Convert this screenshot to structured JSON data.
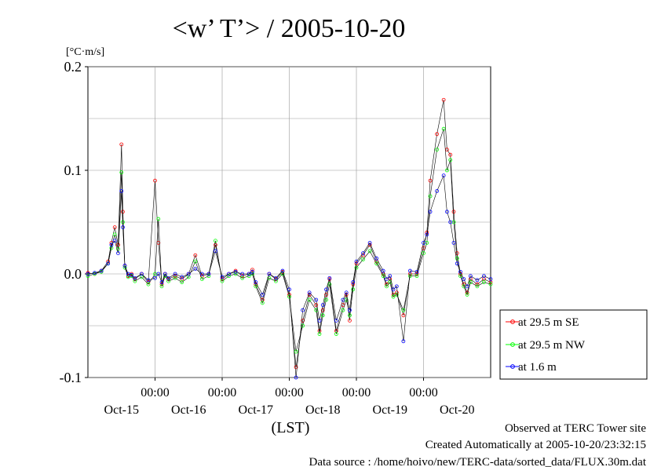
{
  "chart_data": {
    "type": "line",
    "title": "<w’ T’> / 2005-10-20",
    "ylabel": "[°C·m/s]",
    "xlabel": "(LST)",
    "ylim": [
      -0.1,
      0.2
    ],
    "xlim": [
      0,
      6.0
    ],
    "y_ticks": [
      "0.2",
      "0.1",
      "0.0",
      "-0.1"
    ],
    "x_time_ticks": [
      "00:00",
      "00:00",
      "00:00",
      "00:00",
      "00:00"
    ],
    "x_day_ticks": [
      "Oct-15",
      "Oct-16",
      "Oct-17",
      "Oct-18",
      "Oct-19",
      "Oct-20"
    ],
    "grid": true,
    "legend_placement": "right",
    "series": [
      {
        "name": "at 29.5 m SE",
        "color": "#ff0000",
        "x": [
          0.0,
          0.1,
          0.2,
          0.3,
          0.35,
          0.4,
          0.45,
          0.5,
          0.52,
          0.55,
          0.6,
          0.65,
          0.7,
          0.8,
          0.9,
          1.0,
          1.05,
          1.1,
          1.15,
          1.2,
          1.3,
          1.4,
          1.5,
          1.6,
          1.7,
          1.8,
          1.9,
          2.0,
          2.1,
          2.2,
          2.3,
          2.4,
          2.45,
          2.5,
          2.6,
          2.7,
          2.8,
          2.9,
          3.0,
          3.1,
          3.2,
          3.3,
          3.4,
          3.45,
          3.5,
          3.55,
          3.6,
          3.7,
          3.8,
          3.85,
          3.9,
          3.95,
          4.0,
          4.1,
          4.2,
          4.3,
          4.4,
          4.45,
          4.5,
          4.55,
          4.6,
          4.7,
          4.8,
          4.9,
          5.0,
          5.05,
          5.1,
          5.2,
          5.3,
          5.35,
          5.4,
          5.45,
          5.5,
          5.55,
          5.6,
          5.65,
          5.7,
          5.8,
          5.9,
          6.0
        ],
        "y": [
          0.001,
          0.0,
          0.003,
          0.012,
          0.03,
          0.045,
          0.028,
          0.125,
          0.06,
          0.008,
          -0.002,
          0.0,
          -0.005,
          0.0,
          -0.008,
          0.09,
          0.03,
          -0.01,
          0.0,
          -0.005,
          -0.002,
          -0.005,
          0.0,
          0.018,
          -0.002,
          0.0,
          0.028,
          -0.005,
          0.0,
          0.003,
          -0.002,
          0.0,
          0.004,
          -0.01,
          -0.025,
          0.0,
          -0.005,
          0.002,
          -0.02,
          -0.09,
          -0.045,
          -0.02,
          -0.03,
          -0.055,
          -0.035,
          -0.02,
          -0.005,
          -0.055,
          -0.03,
          -0.02,
          -0.045,
          -0.01,
          0.01,
          0.018,
          0.028,
          0.012,
          0.0,
          -0.01,
          -0.005,
          -0.02,
          -0.018,
          -0.04,
          0.0,
          0.0,
          0.025,
          0.04,
          0.09,
          0.135,
          0.168,
          0.12,
          0.115,
          0.06,
          0.02,
          0.0,
          -0.01,
          -0.018,
          -0.005,
          -0.01,
          -0.005,
          -0.008
        ]
      },
      {
        "name": "at 29.5 m NW",
        "color": "#00ff00",
        "x": [
          0.0,
          0.1,
          0.2,
          0.3,
          0.35,
          0.4,
          0.45,
          0.5,
          0.52,
          0.55,
          0.6,
          0.65,
          0.7,
          0.8,
          0.9,
          1.0,
          1.05,
          1.1,
          1.15,
          1.2,
          1.3,
          1.4,
          1.5,
          1.6,
          1.7,
          1.8,
          1.9,
          2.0,
          2.1,
          2.2,
          2.3,
          2.4,
          2.45,
          2.5,
          2.6,
          2.7,
          2.8,
          2.9,
          3.0,
          3.1,
          3.2,
          3.3,
          3.4,
          3.45,
          3.5,
          3.55,
          3.6,
          3.7,
          3.8,
          3.85,
          3.9,
          3.95,
          4.0,
          4.1,
          4.2,
          4.3,
          4.4,
          4.45,
          4.5,
          4.55,
          4.6,
          4.7,
          4.8,
          4.9,
          5.0,
          5.05,
          5.1,
          5.2,
          5.3,
          5.35,
          5.4,
          5.45,
          5.5,
          5.55,
          5.6,
          5.65,
          5.7,
          5.8,
          5.9,
          6.0
        ],
        "y": [
          -0.002,
          0.0,
          0.002,
          0.01,
          0.025,
          0.038,
          0.024,
          0.098,
          0.05,
          0.006,
          -0.003,
          -0.002,
          -0.007,
          -0.003,
          -0.01,
          0.0,
          0.053,
          -0.012,
          -0.002,
          -0.007,
          -0.004,
          -0.008,
          -0.003,
          0.012,
          -0.005,
          -0.002,
          0.032,
          -0.007,
          -0.002,
          0.0,
          -0.004,
          -0.002,
          0.0,
          -0.012,
          -0.028,
          -0.004,
          -0.007,
          0.0,
          -0.022,
          -0.075,
          -0.05,
          -0.025,
          -0.035,
          -0.058,
          -0.04,
          -0.025,
          -0.01,
          -0.058,
          -0.035,
          -0.025,
          -0.04,
          -0.015,
          0.006,
          0.014,
          0.022,
          0.01,
          -0.002,
          -0.012,
          -0.008,
          -0.022,
          -0.02,
          -0.035,
          -0.002,
          -0.002,
          0.02,
          0.03,
          0.075,
          0.12,
          0.14,
          0.1,
          0.11,
          0.05,
          0.015,
          -0.002,
          -0.012,
          -0.02,
          -0.008,
          -0.012,
          -0.008,
          -0.01
        ]
      },
      {
        "name": "at 1.6 m",
        "color": "#0000ff",
        "x": [
          0.0,
          0.1,
          0.2,
          0.3,
          0.35,
          0.4,
          0.45,
          0.5,
          0.52,
          0.55,
          0.6,
          0.65,
          0.7,
          0.8,
          0.9,
          1.0,
          1.05,
          1.1,
          1.15,
          1.2,
          1.3,
          1.4,
          1.5,
          1.6,
          1.7,
          1.8,
          1.9,
          2.0,
          2.1,
          2.2,
          2.3,
          2.4,
          2.45,
          2.5,
          2.6,
          2.7,
          2.8,
          2.9,
          3.0,
          3.1,
          3.2,
          3.3,
          3.4,
          3.45,
          3.5,
          3.55,
          3.6,
          3.7,
          3.8,
          3.85,
          3.9,
          3.95,
          4.0,
          4.1,
          4.2,
          4.3,
          4.4,
          4.45,
          4.5,
          4.55,
          4.6,
          4.7,
          4.8,
          4.9,
          5.0,
          5.05,
          5.1,
          5.2,
          5.3,
          5.35,
          5.4,
          5.45,
          5.5,
          5.55,
          5.6,
          5.65,
          5.7,
          5.8,
          5.9,
          6.0
        ],
        "y": [
          0.0,
          0.001,
          0.003,
          0.01,
          0.028,
          0.032,
          0.02,
          0.08,
          0.045,
          0.008,
          0.0,
          -0.001,
          -0.004,
          0.0,
          -0.006,
          -0.004,
          0.0,
          -0.008,
          0.0,
          -0.004,
          0.0,
          -0.003,
          0.0,
          0.005,
          0.0,
          0.0,
          0.022,
          -0.003,
          0.0,
          0.002,
          0.0,
          0.0,
          0.002,
          -0.008,
          -0.02,
          0.0,
          -0.004,
          0.003,
          -0.015,
          -0.1,
          -0.035,
          -0.018,
          -0.025,
          -0.045,
          -0.03,
          -0.015,
          -0.004,
          -0.045,
          -0.025,
          -0.018,
          -0.035,
          -0.008,
          0.012,
          0.02,
          0.03,
          0.015,
          0.003,
          -0.005,
          -0.002,
          -0.015,
          -0.012,
          -0.065,
          0.003,
          0.002,
          0.03,
          0.038,
          0.06,
          0.08,
          0.095,
          0.06,
          0.05,
          0.03,
          0.01,
          0.002,
          -0.005,
          -0.012,
          -0.002,
          -0.006,
          -0.002,
          -0.005
        ]
      }
    ]
  },
  "legend": {
    "items": [
      "at 29.5 m SE",
      "at 29.5 m NW",
      "at 1.6 m"
    ]
  },
  "footer": {
    "line1": "Observed at TERC Tower site",
    "line2": "Created Automatically at 2005-10-20/23:32:15",
    "line3": "Data source : /home/hoivo/new/TERC-data/sorted_data/FLUX.30m.dat"
  }
}
